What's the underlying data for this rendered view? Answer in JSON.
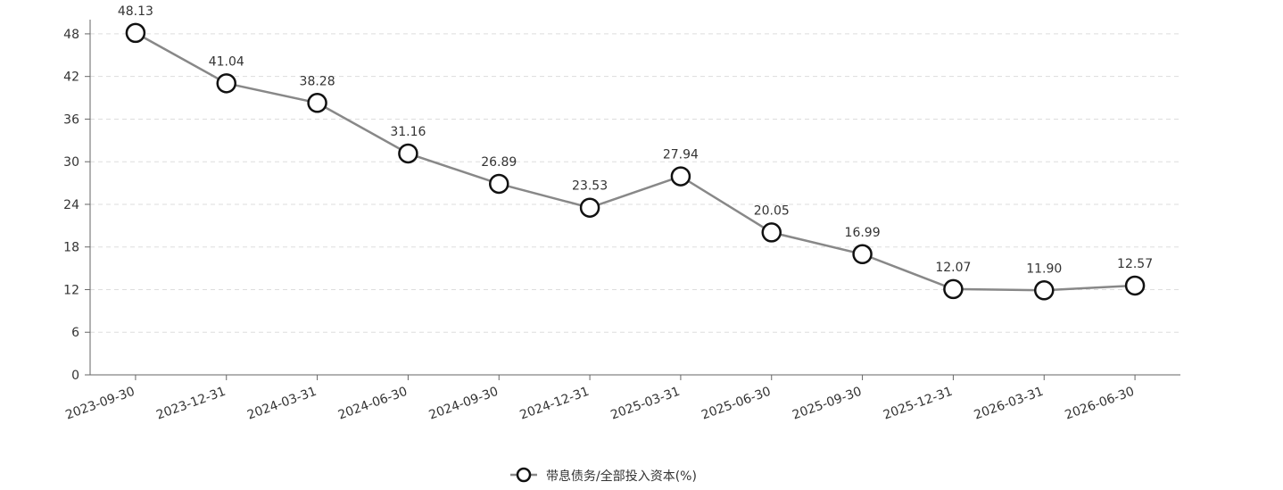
{
  "chart_data": {
    "type": "line",
    "categories": [
      "2023-09-30",
      "2023-12-31",
      "2024-03-31",
      "2024-06-30",
      "2024-09-30",
      "2024-12-31",
      "2025-03-31",
      "2025-06-30",
      "2025-09-30",
      "2025-12-31",
      "2026-03-31",
      "2026-06-30"
    ],
    "series": [
      {
        "name": "带息债务/全部投入资本(%)",
        "color": "#888888",
        "values": [
          48.13,
          41.04,
          38.28,
          31.16,
          26.89,
          23.53,
          27.94,
          20.05,
          16.99,
          12.07,
          11.9,
          12.57
        ],
        "value_labels": [
          "48.13",
          "41.04",
          "38.28",
          "31.16",
          "26.89",
          "23.53",
          "27.94",
          "20.05",
          "16.99",
          "12.07",
          "11.90",
          "12.57"
        ]
      }
    ],
    "ylim": [
      0,
      50
    ],
    "yticks": [
      0,
      6,
      12,
      18,
      24,
      30,
      36,
      42,
      48
    ],
    "grid": true,
    "legend": "bottom"
  }
}
